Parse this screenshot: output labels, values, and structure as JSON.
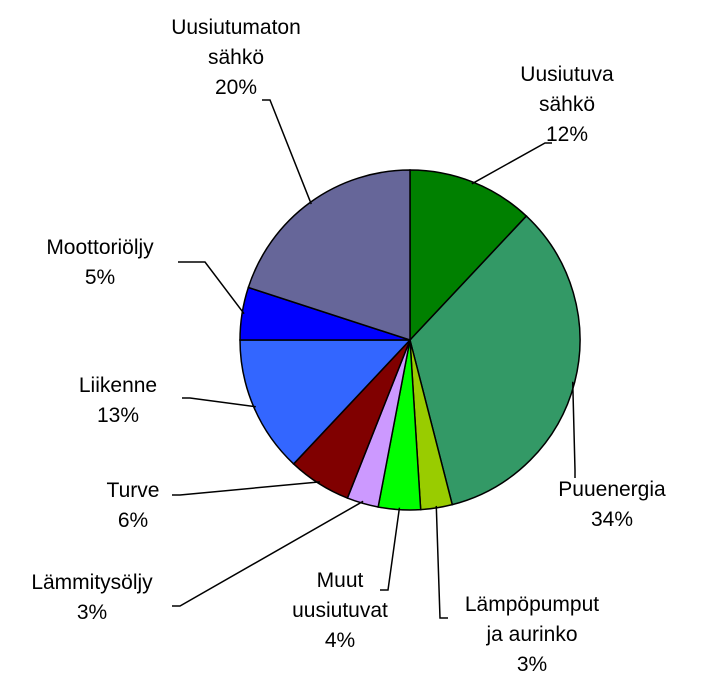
{
  "chart_data": {
    "type": "pie",
    "categories": [
      "Uusiutuva\nsähkö",
      "Puuenergia",
      "Lämpöpumput\nja aurinko",
      "Muut\nuusiutuvat",
      "Lämmitysöljy",
      "Turve",
      "Liikenne",
      "Moottoriöljy",
      "Uusiutumaton\nsähkö"
    ],
    "values": [
      12,
      34,
      3,
      4,
      3,
      6,
      13,
      5,
      20
    ],
    "value_labels": [
      "12%",
      "34%",
      "3%",
      "4%",
      "3%",
      "6%",
      "13%",
      "5%",
      "20%"
    ],
    "colors": [
      "#008000",
      "#339966",
      "#99cc00",
      "#00ff00",
      "#cc99ff",
      "#800000",
      "#3366ff",
      "#0000ff",
      "#666699"
    ]
  }
}
